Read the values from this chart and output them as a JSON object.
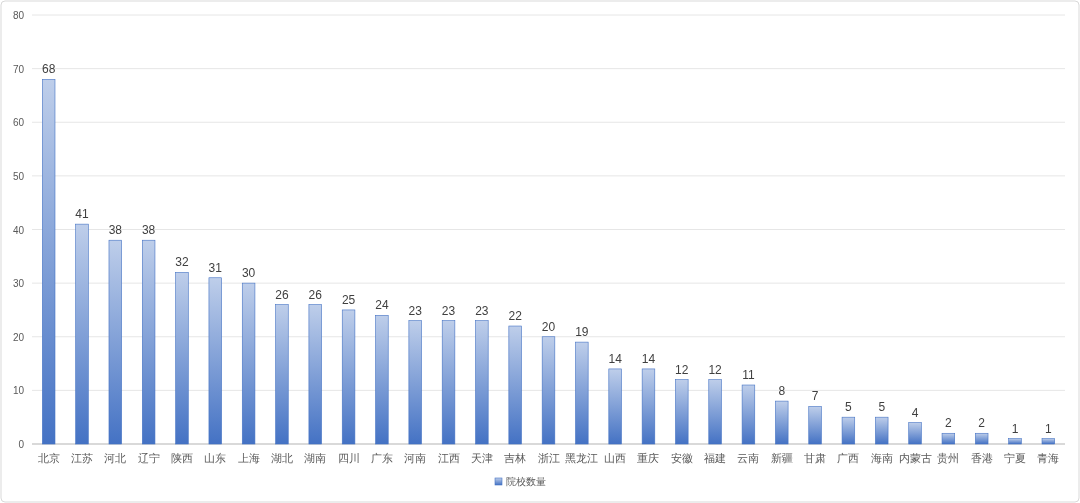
{
  "chart_data": {
    "type": "bar",
    "categories": [
      "北京",
      "江苏",
      "河北",
      "辽宁",
      "陕西",
      "山东",
      "上海",
      "湖北",
      "湖南",
      "四川",
      "广东",
      "河南",
      "江西",
      "天津",
      "吉林",
      "浙江",
      "黑龙江",
      "山西",
      "重庆",
      "安徽",
      "福建",
      "云南",
      "新疆",
      "甘肃",
      "广西",
      "海南",
      "内蒙古",
      "贵州",
      "香港",
      "宁夏",
      "青海"
    ],
    "series": [
      {
        "name": "院校数量",
        "color": "#4472c4",
        "values": [
          68,
          41,
          38,
          38,
          32,
          31,
          30,
          26,
          26,
          25,
          24,
          23,
          23,
          23,
          22,
          20,
          19,
          14,
          14,
          12,
          12,
          11,
          8,
          7,
          5,
          5,
          4,
          2,
          2,
          1,
          1
        ]
      }
    ],
    "ylim": [
      0,
      80
    ],
    "yticks": [
      0,
      10,
      20,
      30,
      40,
      50,
      60,
      70,
      80
    ],
    "grid": "y",
    "legend": "bottom",
    "data_labels": true
  }
}
